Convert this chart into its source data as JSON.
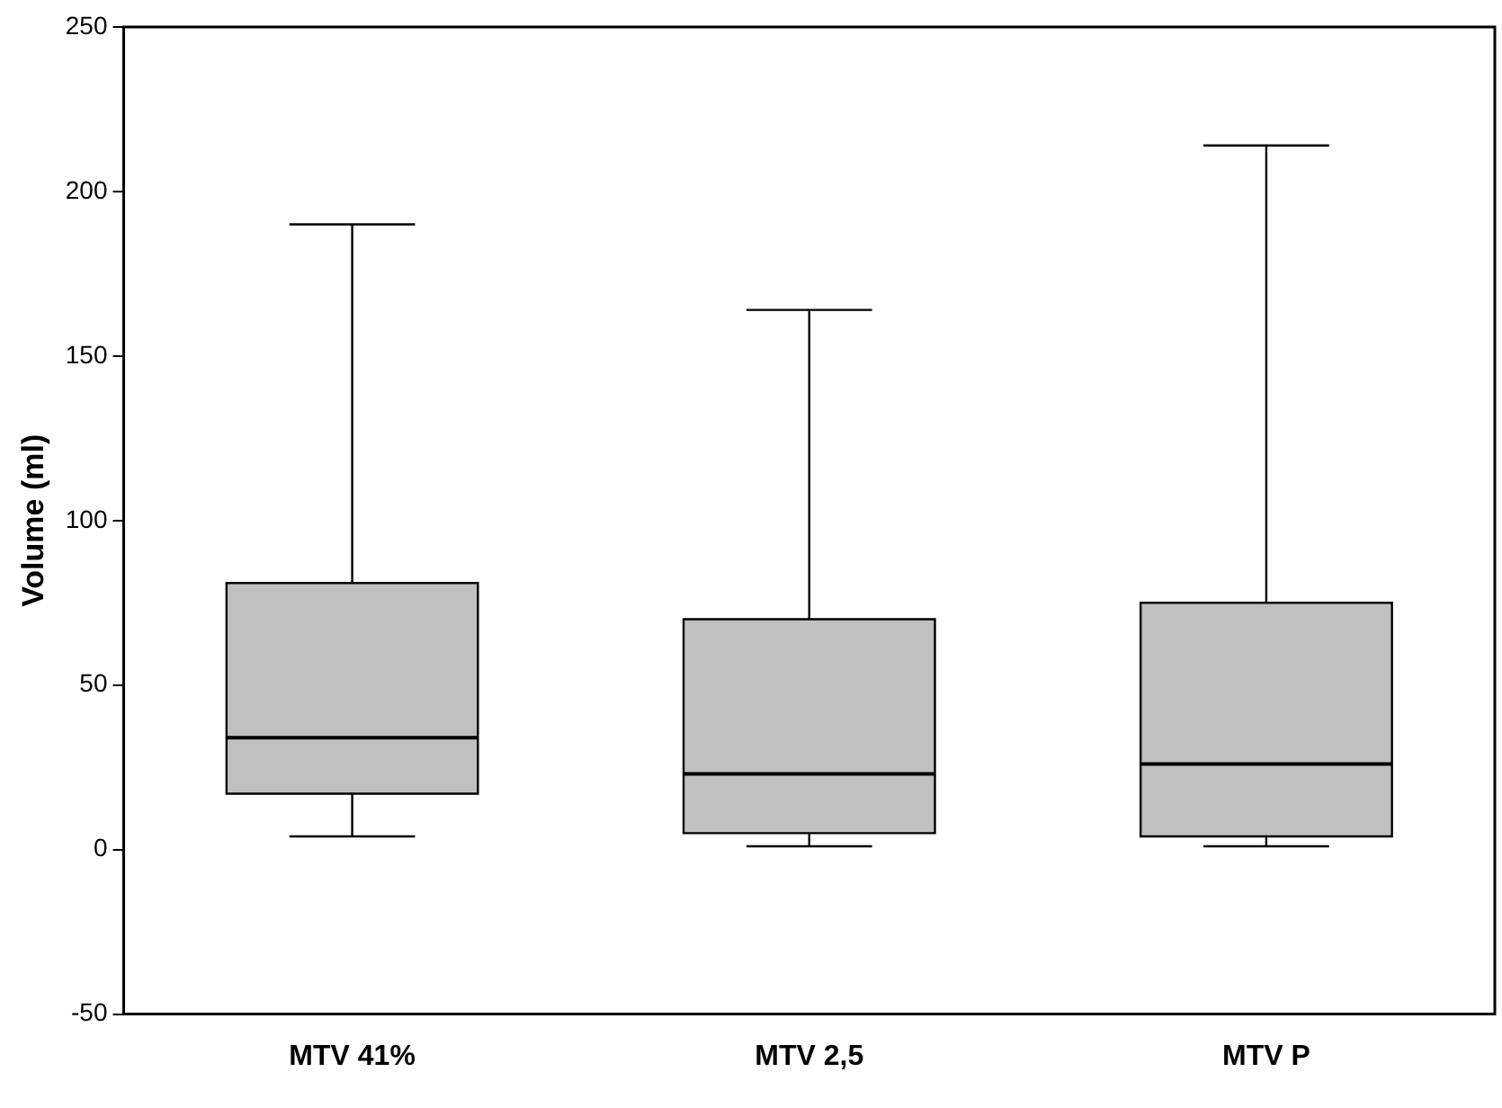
{
  "chart_data": {
    "type": "box",
    "ylabel": "Volume (ml)",
    "categories": [
      "MTV 41%",
      "MTV 2,5",
      "MTV P"
    ],
    "color": "#c0c0c0",
    "boxes": [
      {
        "low": 4,
        "q1": 17,
        "median": 34,
        "q3": 81,
        "high": 190
      },
      {
        "low": 1,
        "q1": 5,
        "median": 23,
        "q3": 70,
        "high": 164
      },
      {
        "low": 1,
        "q1": 4,
        "median": 26,
        "q3": 75,
        "high": 214
      }
    ],
    "ylim": [
      -50,
      250
    ],
    "yticks": [
      -50,
      0,
      50,
      100,
      150,
      200,
      250
    ],
    "grid": false,
    "legend": false
  }
}
